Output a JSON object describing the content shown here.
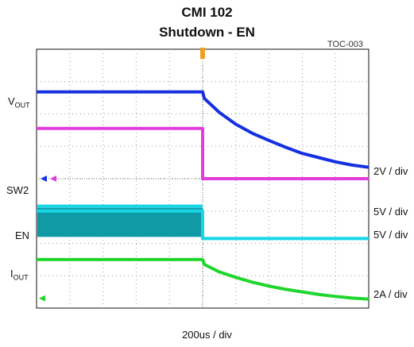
{
  "chart_data": {
    "type": "line",
    "title": "CMI 102",
    "subtitle": "Shutdown - EN",
    "figure_id": "TOC-003",
    "xlabel": "200us / div",
    "grid": true,
    "grid_divisions": {
      "x": 10,
      "y": 8
    },
    "trigger_division": 5.0,
    "series": [
      {
        "name": "V",
        "subscript": "OUT",
        "color": "#1530e0",
        "scale": "2V / div",
        "x_div": [
          0,
          5.0,
          5.05,
          5.5,
          6.0,
          6.5,
          7.0,
          7.5,
          8.0,
          8.5,
          9.0,
          9.5,
          10.0
        ],
        "y_div": [
          6.68,
          6.68,
          6.48,
          6.05,
          5.68,
          5.4,
          5.18,
          4.97,
          4.78,
          4.65,
          4.52,
          4.42,
          4.35
        ]
      },
      {
        "name": "",
        "subscript": "",
        "color": "#e43be0",
        "scale": "",
        "x_div": [
          0,
          5.0,
          5.0,
          10.0
        ],
        "y_div": [
          5.55,
          5.55,
          4.0,
          4.0
        ]
      },
      {
        "name": "SW2",
        "subscript": "",
        "color": "#18d6e6",
        "scale": "5V / div",
        "x_div": [
          0,
          5.0,
          5.0,
          10.0
        ],
        "y_div": [
          3.0,
          3.0,
          2.15,
          2.15
        ],
        "band_div": [
          2.2,
          3.1
        ]
      },
      {
        "name": "EN",
        "subscript": "",
        "color": "#20d62e",
        "scale": "5V / div",
        "x_div": [
          0,
          5.0,
          5.05,
          5.5,
          6.0,
          6.5,
          7.0,
          7.5,
          8.0,
          8.5,
          9.0,
          9.5,
          10.0
        ],
        "y_div": [
          1.5,
          1.5,
          1.35,
          1.12,
          0.95,
          0.8,
          0.68,
          0.58,
          0.5,
          0.42,
          0.36,
          0.31,
          0.28
        ]
      },
      {
        "name": "I",
        "subscript": "OUT",
        "color": "#20d62e",
        "scale": "2A / div",
        "x_div": [],
        "y_div": []
      }
    ]
  }
}
